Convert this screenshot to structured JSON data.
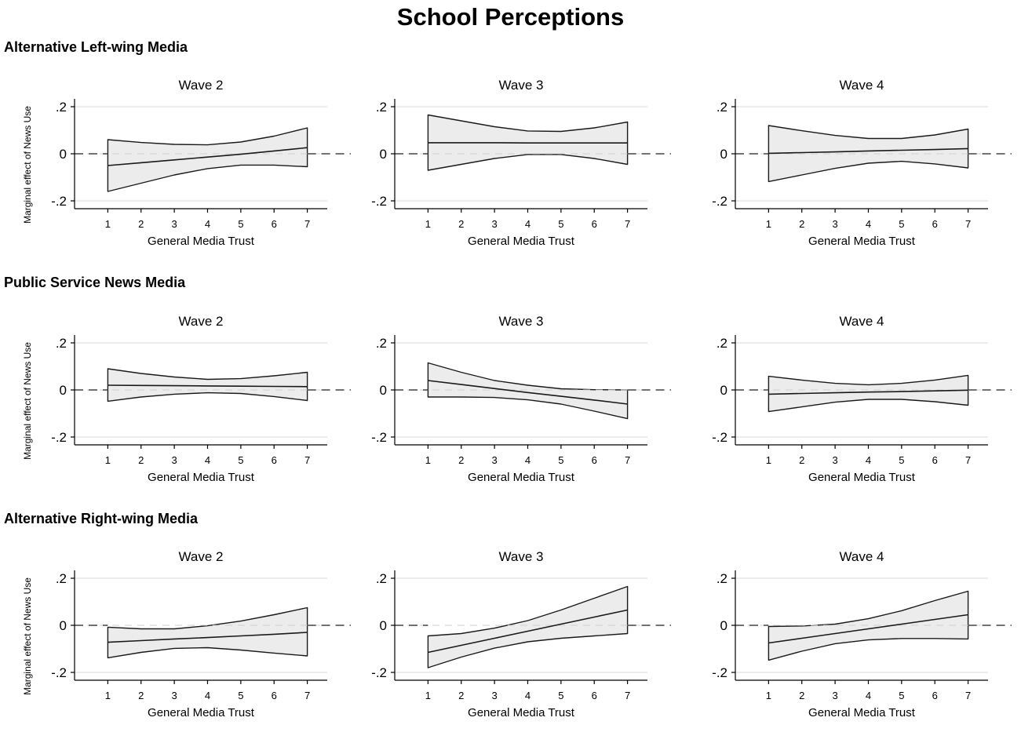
{
  "title": "School Perceptions",
  "x_axis_label": "General Media Trust",
  "y_axis_label": "Marginal effect of News Use",
  "y_tick_labels": [
    ".2",
    "0",
    "-.2"
  ],
  "x_tick_labels": [
    "1",
    "2",
    "3",
    "4",
    "5",
    "6",
    "7"
  ],
  "colors": {
    "band_fill": "#ececec",
    "line": "#1a1a1a",
    "grid": "#d9d9d9",
    "reference_line": "#444444"
  },
  "chart_data": [
    {
      "type": "area",
      "row": "Alternative Left-wing Media",
      "title": "Wave 2",
      "x": [
        1,
        2,
        3,
        4,
        5,
        6,
        7
      ],
      "estimate": [
        -0.05,
        -0.038,
        -0.026,
        -0.014,
        -0.002,
        0.012,
        0.026
      ],
      "upper": [
        0.06,
        0.048,
        0.04,
        0.038,
        0.05,
        0.075,
        0.11
      ],
      "lower": [
        -0.16,
        -0.125,
        -0.09,
        -0.063,
        -0.048,
        -0.048,
        -0.055
      ],
      "xlim": [
        0,
        7.6
      ],
      "ylim": [
        -0.23,
        0.23
      ],
      "y_ticks": [
        0.2,
        0,
        -0.2
      ],
      "grid": true,
      "reference_line": 0
    },
    {
      "type": "area",
      "row": "Alternative Left-wing Media",
      "title": "Wave 3",
      "x": [
        1,
        2,
        3,
        4,
        5,
        6,
        7
      ],
      "estimate": [
        0.047,
        0.047,
        0.047,
        0.046,
        0.046,
        0.046,
        0.046
      ],
      "upper": [
        0.165,
        0.14,
        0.115,
        0.097,
        0.095,
        0.11,
        0.135
      ],
      "lower": [
        -0.07,
        -0.045,
        -0.02,
        -0.003,
        -0.003,
        -0.02,
        -0.045
      ],
      "xlim": [
        0,
        7.6
      ],
      "ylim": [
        -0.23,
        0.23
      ],
      "y_ticks": [
        0.2,
        0,
        -0.2
      ],
      "grid": true,
      "reference_line": 0
    },
    {
      "type": "area",
      "row": "Alternative Left-wing Media",
      "title": "Wave 4",
      "x": [
        1,
        2,
        3,
        4,
        5,
        6,
        7
      ],
      "estimate": [
        0.002,
        0.005,
        0.008,
        0.012,
        0.015,
        0.018,
        0.022
      ],
      "upper": [
        0.12,
        0.098,
        0.078,
        0.065,
        0.065,
        0.08,
        0.105
      ],
      "lower": [
        -0.118,
        -0.09,
        -0.062,
        -0.04,
        -0.032,
        -0.043,
        -0.06
      ],
      "xlim": [
        0,
        7.6
      ],
      "ylim": [
        -0.23,
        0.23
      ],
      "y_ticks": [
        0.2,
        0,
        -0.2
      ],
      "grid": true,
      "reference_line": 0
    },
    {
      "type": "area",
      "row": "Public Service News Media",
      "title": "Wave 2",
      "x": [
        1,
        2,
        3,
        4,
        5,
        6,
        7
      ],
      "estimate": [
        0.02,
        0.019,
        0.018,
        0.017,
        0.016,
        0.015,
        0.014
      ],
      "upper": [
        0.09,
        0.07,
        0.055,
        0.045,
        0.048,
        0.06,
        0.075
      ],
      "lower": [
        -0.048,
        -0.03,
        -0.018,
        -0.012,
        -0.015,
        -0.028,
        -0.045
      ],
      "xlim": [
        0,
        7.6
      ],
      "ylim": [
        -0.23,
        0.23
      ],
      "y_ticks": [
        0.2,
        0,
        -0.2
      ],
      "grid": true,
      "reference_line": 0
    },
    {
      "type": "area",
      "row": "Public Service News Media",
      "title": "Wave 3",
      "x": [
        1,
        2,
        3,
        4,
        5,
        6,
        7
      ],
      "estimate": [
        0.04,
        0.023,
        0.006,
        -0.011,
        -0.027,
        -0.043,
        -0.06
      ],
      "upper": [
        0.115,
        0.075,
        0.04,
        0.02,
        0.005,
        0.001,
        0
      ],
      "lower": [
        -0.03,
        -0.03,
        -0.032,
        -0.042,
        -0.06,
        -0.09,
        -0.122
      ],
      "xlim": [
        0,
        7.6
      ],
      "ylim": [
        -0.23,
        0.23
      ],
      "y_ticks": [
        0.2,
        0,
        -0.2
      ],
      "grid": true,
      "reference_line": 0
    },
    {
      "type": "area",
      "row": "Public Service News Media",
      "title": "Wave 4",
      "x": [
        1,
        2,
        3,
        4,
        5,
        6,
        7
      ],
      "estimate": [
        -0.018,
        -0.015,
        -0.012,
        -0.009,
        -0.007,
        -0.004,
        -0.001
      ],
      "upper": [
        0.058,
        0.042,
        0.028,
        0.022,
        0.028,
        0.042,
        0.062
      ],
      "lower": [
        -0.092,
        -0.072,
        -0.052,
        -0.04,
        -0.04,
        -0.05,
        -0.065
      ],
      "xlim": [
        0,
        7.6
      ],
      "ylim": [
        -0.23,
        0.23
      ],
      "y_ticks": [
        0.2,
        0,
        -0.2
      ],
      "grid": true,
      "reference_line": 0
    },
    {
      "type": "area",
      "row": "Alternative Right-wing Media",
      "title": "Wave 2",
      "x": [
        1,
        2,
        3,
        4,
        5,
        6,
        7
      ],
      "estimate": [
        -0.072,
        -0.065,
        -0.058,
        -0.052,
        -0.045,
        -0.038,
        -0.03
      ],
      "upper": [
        -0.008,
        -0.015,
        -0.015,
        -0.002,
        0.018,
        0.045,
        0.075
      ],
      "lower": [
        -0.138,
        -0.115,
        -0.098,
        -0.095,
        -0.105,
        -0.118,
        -0.13
      ],
      "xlim": [
        0,
        7.6
      ],
      "ylim": [
        -0.23,
        0.23
      ],
      "y_ticks": [
        0.2,
        0,
        -0.2
      ],
      "grid": true,
      "reference_line": 0
    },
    {
      "type": "area",
      "row": "Alternative Right-wing Media",
      "title": "Wave 3",
      "x": [
        1,
        2,
        3,
        4,
        5,
        6,
        7
      ],
      "estimate": [
        -0.115,
        -0.085,
        -0.055,
        -0.025,
        0.005,
        0.035,
        0.065
      ],
      "upper": [
        -0.045,
        -0.035,
        -0.012,
        0.02,
        0.065,
        0.115,
        0.165
      ],
      "lower": [
        -0.18,
        -0.135,
        -0.097,
        -0.07,
        -0.055,
        -0.045,
        -0.035
      ],
      "xlim": [
        0,
        7.6
      ],
      "ylim": [
        -0.23,
        0.23
      ],
      "y_ticks": [
        0.2,
        0,
        -0.2
      ],
      "grid": true,
      "reference_line": 0
    },
    {
      "type": "area",
      "row": "Alternative Right-wing Media",
      "title": "Wave 4",
      "x": [
        1,
        2,
        3,
        4,
        5,
        6,
        7
      ],
      "estimate": [
        -0.075,
        -0.055,
        -0.035,
        -0.015,
        0.005,
        0.025,
        0.045
      ],
      "upper": [
        -0.005,
        -0.003,
        0.005,
        0.028,
        0.062,
        0.105,
        0.145
      ],
      "lower": [
        -0.148,
        -0.11,
        -0.078,
        -0.062,
        -0.056,
        -0.056,
        -0.058
      ],
      "xlim": [
        0,
        7.6
      ],
      "ylim": [
        -0.23,
        0.23
      ],
      "y_ticks": [
        0.2,
        0,
        -0.2
      ],
      "grid": true,
      "reference_line": 0
    }
  ]
}
